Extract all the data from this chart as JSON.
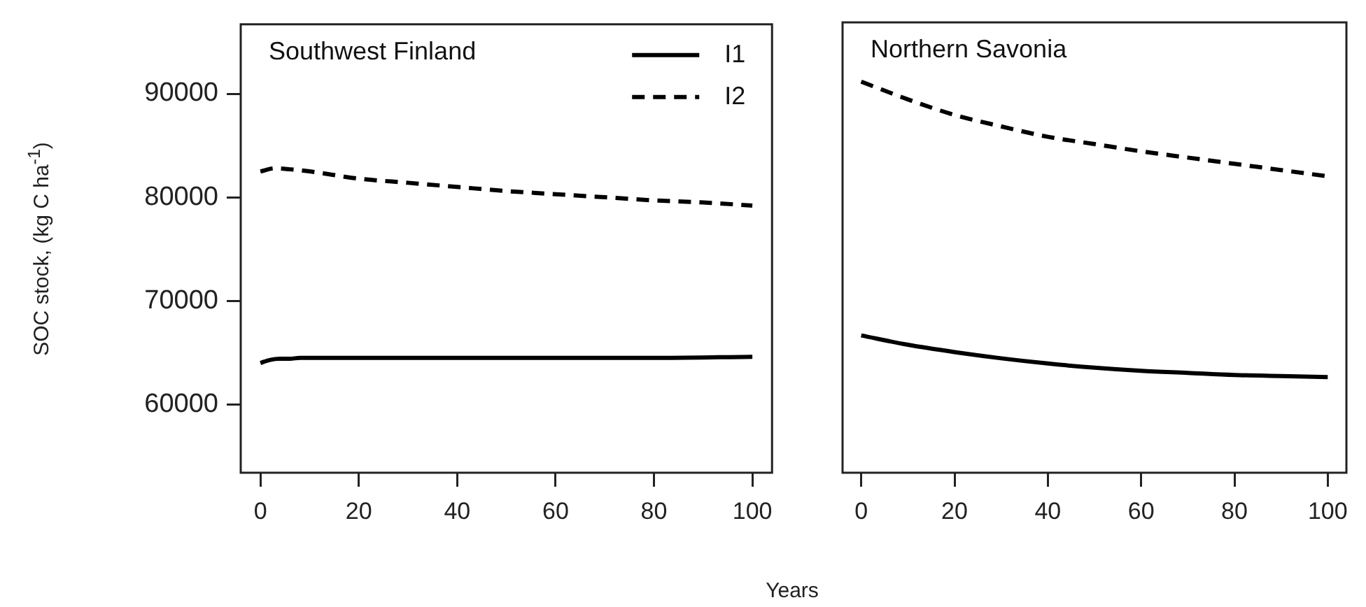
{
  "chart_data": [
    {
      "type": "line",
      "title": "Southwest Finland",
      "xlabel": "Years",
      "ylabel": "SOC stock, (kg C ha$^{-1}$)",
      "xlim": [
        -4,
        104
      ],
      "xticks": [
        0,
        20,
        40,
        60,
        80,
        100
      ],
      "ylim": [
        53400,
        96700
      ],
      "yticks": [
        60000,
        70000,
        80000,
        90000
      ],
      "legend": "top right",
      "grid": false,
      "series": [
        {
          "name": "I1",
          "color": "#000000",
          "line_style": "solid",
          "x": [
            0,
            2,
            4,
            6,
            8,
            10,
            20,
            40,
            60,
            80,
            100
          ],
          "values": [
            64000,
            64300,
            64400,
            64400,
            64500,
            64500,
            64500,
            64500,
            64500,
            64500,
            64600
          ]
        },
        {
          "name": "I2",
          "color": "#000000",
          "line_style": "dashed",
          "x": [
            0,
            3,
            6,
            10,
            20,
            30,
            40,
            50,
            60,
            70,
            80,
            90,
            100
          ],
          "values": [
            82500,
            82800,
            82700,
            82500,
            81800,
            81400,
            81000,
            80600,
            80300,
            80000,
            79700,
            79500,
            79200
          ]
        }
      ]
    },
    {
      "type": "line",
      "title": "Northern Savonia",
      "xlim": [
        -4,
        104
      ],
      "xticks": [
        0,
        20,
        40,
        60,
        80,
        100
      ],
      "ylim": [
        53400,
        96700
      ],
      "tick_labels": "x",
      "grid": false,
      "series": [
        {
          "color": "#000000",
          "line_style": "solid",
          "x": [
            0,
            10,
            20,
            30,
            40,
            50,
            60,
            70,
            80,
            90,
            100
          ],
          "values": [
            66600,
            65700,
            65000,
            64400,
            63900,
            63500,
            63200,
            63000,
            62800,
            62700,
            62600
          ]
        },
        {
          "color": "#000000",
          "line_style": "dashed",
          "x": [
            0,
            10,
            20,
            30,
            40,
            50,
            60,
            70,
            80,
            90,
            100
          ],
          "values": [
            91000,
            89300,
            87800,
            86700,
            85700,
            85000,
            84300,
            83700,
            83100,
            82500,
            81900
          ]
        }
      ]
    }
  ]
}
